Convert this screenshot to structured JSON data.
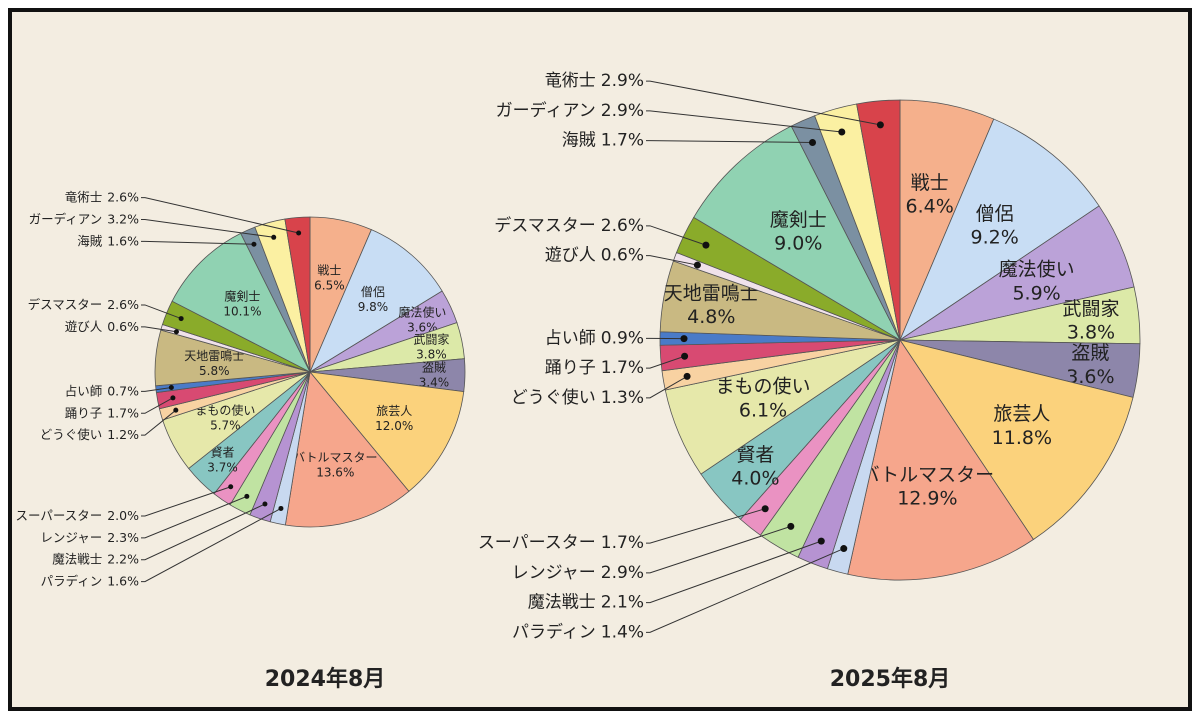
{
  "chart_data": [
    {
      "type": "pie",
      "title": "2024年8月",
      "categories": [
        "戦士",
        "僧侶",
        "魔法使い",
        "武闘家",
        "盗賊",
        "旅芸人",
        "バトルマスター",
        "パラディン",
        "魔法戦士",
        "レンジャー",
        "スーパースター",
        "賢者",
        "まもの使い",
        "どうぐ使い",
        "踊り子",
        "占い師",
        "天地雷鳴士",
        "遊び人",
        "デスマスター",
        "魔剣士",
        "海賊",
        "ガーディアン",
        "竜術士"
      ],
      "values": [
        6.5,
        9.8,
        3.6,
        3.8,
        3.4,
        12.0,
        13.6,
        1.6,
        2.2,
        2.3,
        2.0,
        3.7,
        5.7,
        1.2,
        1.7,
        0.7,
        5.8,
        0.6,
        2.6,
        10.1,
        1.6,
        3.2,
        2.6
      ],
      "value_labels": [
        "6.5%",
        "9.8%",
        "3.6%",
        "3.8%",
        "3.4%",
        "12.0%",
        "13.6%",
        "1.6%",
        "2.2%",
        "2.3%",
        "2.0%",
        "3.7%",
        "5.7%",
        "1.2%",
        "1.7%",
        "0.7%",
        "5.8%",
        "0.6%",
        "2.6%",
        "10.1%",
        "1.6%",
        "3.2%",
        "2.6%"
      ],
      "colors": [
        "#f5b08c",
        "#c8ddf4",
        "#bba2d8",
        "#dce9a8",
        "#8d86aa",
        "#fbd27c",
        "#f6a68c",
        "#c8d9f0",
        "#b693d2",
        "#c0e3a2",
        "#ea92c2",
        "#88c6c2",
        "#e6e8aa",
        "#f8d2a2",
        "#d84a72",
        "#4a7bc8",
        "#c9b982",
        "#f0e2ea",
        "#8aab2a",
        "#90d2b2",
        "#7b90a2",
        "#fbf0a2",
        "#d8434b"
      ]
    },
    {
      "type": "pie",
      "title": "2025年8月",
      "categories": [
        "戦士",
        "僧侶",
        "魔法使い",
        "武闘家",
        "盗賊",
        "旅芸人",
        "バトルマスター",
        "パラディン",
        "魔法戦士",
        "レンジャー",
        "スーパースター",
        "賢者",
        "まもの使い",
        "どうぐ使い",
        "踊り子",
        "占い師",
        "天地雷鳴士",
        "遊び人",
        "デスマスター",
        "魔剣士",
        "海賊",
        "ガーディアン",
        "竜術士"
      ],
      "values": [
        6.4,
        9.2,
        5.9,
        3.8,
        3.6,
        11.8,
        12.9,
        1.4,
        2.1,
        2.9,
        1.7,
        4.0,
        6.1,
        1.3,
        1.7,
        0.9,
        4.8,
        0.6,
        2.6,
        9.0,
        1.7,
        2.9,
        2.9
      ],
      "value_labels": [
        "6.4%",
        "9.2%",
        "5.9%",
        "3.8%",
        "3.6%",
        "11.8%",
        "12.9%",
        "1.4%",
        "2.1%",
        "2.9%",
        "1.7%",
        "4.0%",
        "6.1%",
        "1.3%",
        "1.7%",
        "0.9%",
        "4.8%",
        "0.6%",
        "2.6%",
        "9.0%",
        "1.7%",
        "2.9%",
        "2.9%"
      ],
      "colors": [
        "#f5b08c",
        "#c8ddf4",
        "#bba2d8",
        "#dce9a8",
        "#8d86aa",
        "#fbd27c",
        "#f6a68c",
        "#c8d9f0",
        "#b693d2",
        "#c0e3a2",
        "#ea92c2",
        "#88c6c2",
        "#e6e8aa",
        "#f8d2a2",
        "#d84a72",
        "#4a7bc8",
        "#c9b982",
        "#f0e2ea",
        "#8aab2a",
        "#90d2b2",
        "#7b90a2",
        "#fbf0a2",
        "#d8434b"
      ]
    }
  ]
}
